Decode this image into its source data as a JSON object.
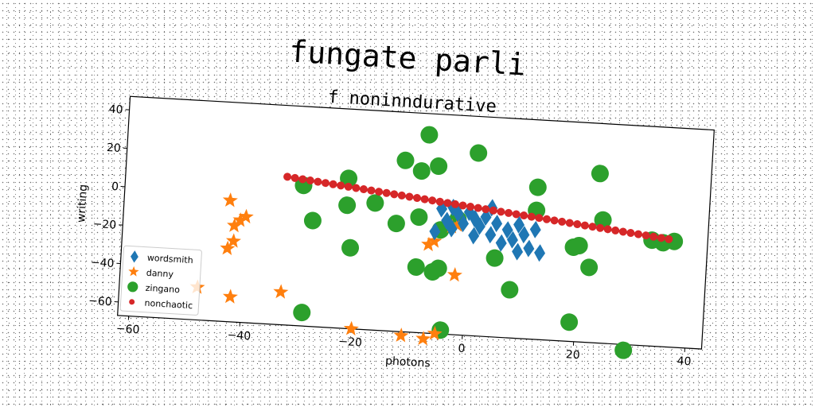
{
  "chart_data": {
    "type": "scatter",
    "title": "fungate parli",
    "subtitle": "f noninndurative",
    "xlabel": "photons",
    "ylabel": "writing",
    "xlim": [
      -62,
      43
    ],
    "ylim": [
      -67,
      47
    ],
    "xticks": [
      -60,
      -40,
      -20,
      0,
      20,
      40
    ],
    "yticks": [
      40,
      20,
      0,
      -20,
      -40,
      -60
    ],
    "grid": false,
    "legend_position": "lower-left",
    "series": [
      {
        "name": "wordsmith",
        "marker": "diamond",
        "color": "#1f77b4",
        "points": [
          [
            -5,
            -2
          ],
          [
            -4,
            -8
          ],
          [
            -3,
            -12
          ],
          [
            -2,
            -4
          ],
          [
            -1,
            -9
          ],
          [
            0,
            -3
          ],
          [
            1,
            -6
          ],
          [
            2,
            -10
          ],
          [
            3,
            -5
          ],
          [
            4,
            -14
          ],
          [
            5,
            -8
          ],
          [
            6,
            -18
          ],
          [
            7,
            -11
          ],
          [
            8,
            -16
          ],
          [
            9,
            -8
          ],
          [
            10,
            -13
          ],
          [
            11,
            -20
          ],
          [
            12,
            -10
          ],
          [
            13,
            -22
          ],
          [
            -6,
            -14
          ],
          [
            4,
            0
          ],
          [
            -3,
            -1
          ],
          [
            1,
            -15
          ],
          [
            9,
            -22
          ]
        ]
      },
      {
        "name": "danny",
        "marker": "star",
        "color": "#ff7f0e",
        "points": [
          [
            -43,
            -4
          ],
          [
            -41,
            -14
          ],
          [
            -42,
            -17
          ],
          [
            -40,
            -12
          ],
          [
            -43,
            -29
          ],
          [
            -42,
            -25
          ],
          [
            -48,
            -50
          ],
          [
            -42,
            -54
          ],
          [
            -33,
            -50
          ],
          [
            -20,
            -67
          ],
          [
            -11,
            -69
          ],
          [
            -7,
            -21
          ],
          [
            -6,
            -19
          ],
          [
            -5,
            -67
          ],
          [
            -3,
            -11
          ],
          [
            -2,
            -10
          ],
          [
            -2,
            -36
          ],
          [
            -7,
            -70
          ]
        ]
      },
      {
        "name": "zingano",
        "marker": "circle",
        "color": "#2ca02c",
        "points": [
          [
            -8,
            36
          ],
          [
            -12,
            22
          ],
          [
            -9,
            17
          ],
          [
            -6,
            20
          ],
          [
            1,
            28
          ],
          [
            -22,
            11
          ],
          [
            -22,
            -3
          ],
          [
            -17,
            -1
          ],
          [
            -13,
            -11
          ],
          [
            -9,
            -7
          ],
          [
            -5,
            -13
          ],
          [
            -2,
            -7
          ],
          [
            -30,
            6
          ],
          [
            -28,
            -12
          ],
          [
            -21,
            -25
          ],
          [
            -9,
            -33
          ],
          [
            -6,
            -35
          ],
          [
            -29,
            -60
          ],
          [
            -4,
            -65
          ],
          [
            12,
            12
          ],
          [
            12,
            0
          ],
          [
            23,
            21
          ],
          [
            24,
            -3
          ],
          [
            22,
            -28
          ],
          [
            19,
            -18
          ],
          [
            20,
            -17
          ],
          [
            5,
            -26
          ],
          [
            8,
            -42
          ],
          [
            19,
            -57
          ],
          [
            33,
            -12
          ],
          [
            35,
            -13
          ],
          [
            37,
            -12
          ],
          [
            29,
            -70
          ],
          [
            -5,
            -33
          ]
        ]
      },
      {
        "name": "nonchaotic",
        "marker": "point",
        "color": "#d62728",
        "line": true,
        "x_start": -33,
        "x_end": 36,
        "y_start": 10,
        "y_end": -11
      }
    ]
  }
}
